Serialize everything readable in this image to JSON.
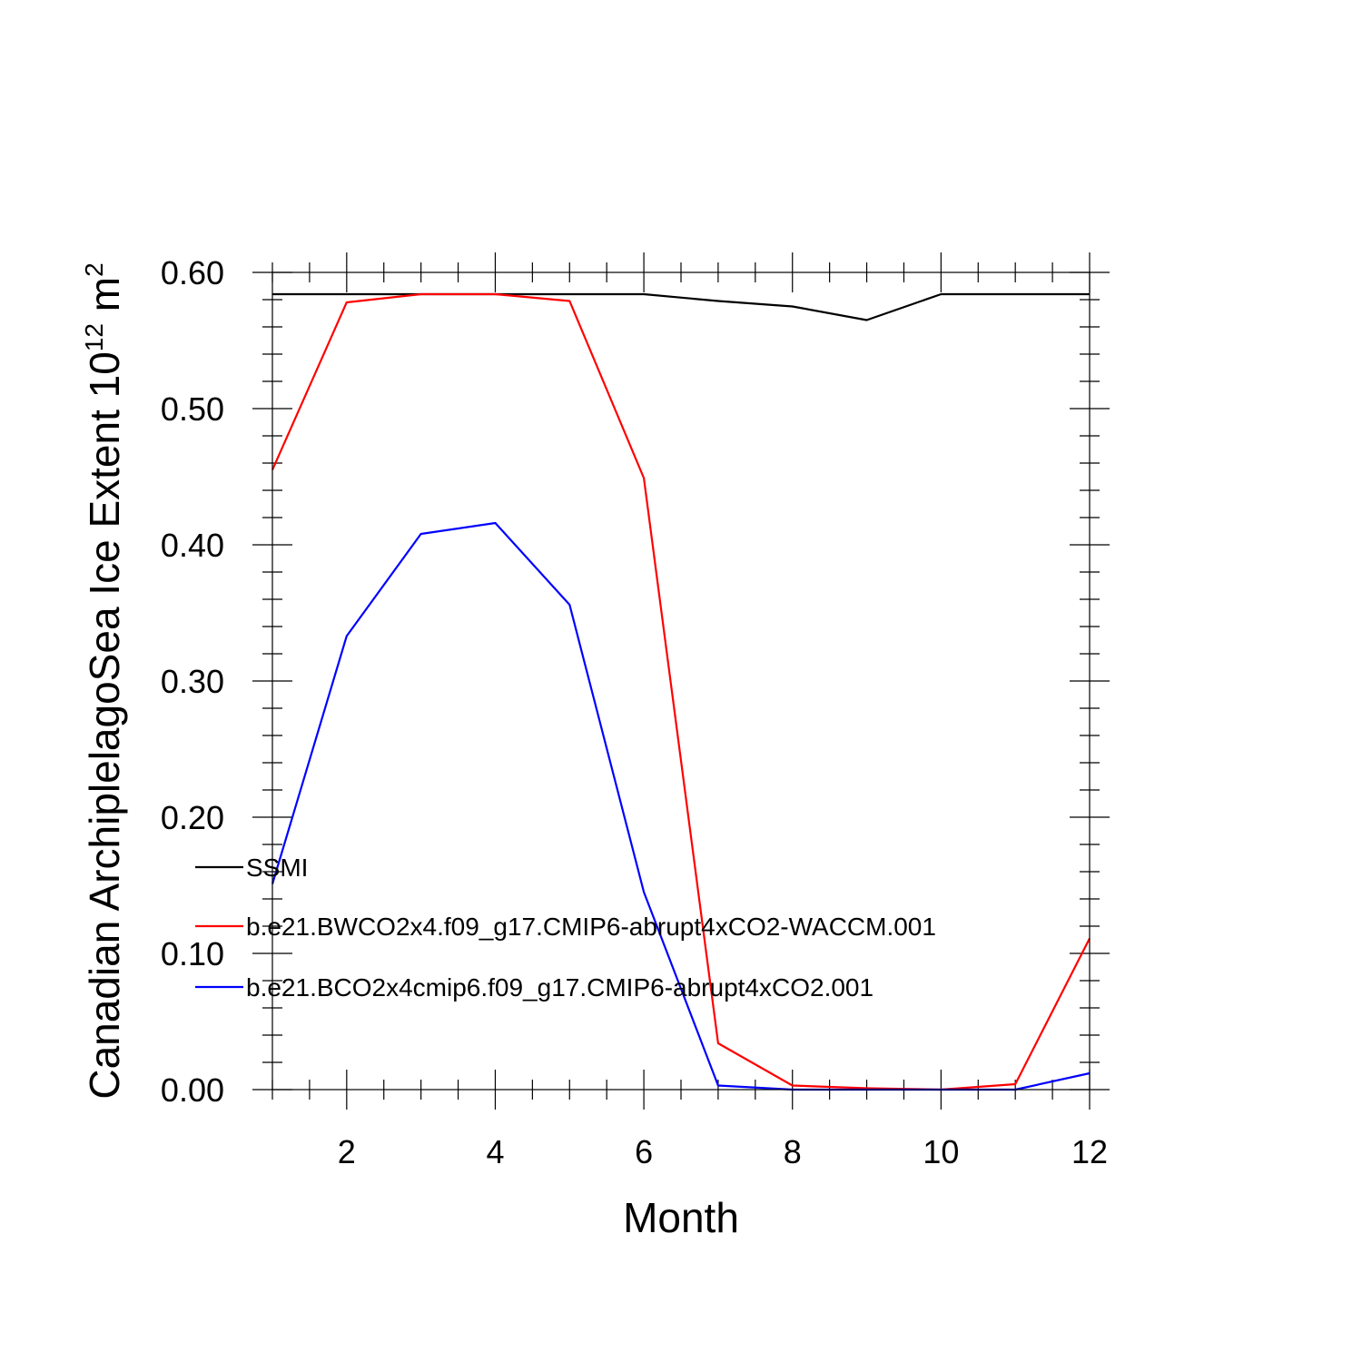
{
  "chart_data": {
    "type": "line",
    "title": "",
    "xlabel": "Month",
    "ylabel": {
      "main": "Canadian ArchiplelagoSea Ice Extent 10",
      "exponent": "12",
      "unit": " m",
      "unit_exponent": "2"
    },
    "xlim": [
      1,
      12
    ],
    "ylim": [
      0,
      0.6
    ],
    "x": [
      1,
      2,
      3,
      4,
      5,
      6,
      7,
      8,
      9,
      10,
      11,
      12
    ],
    "xticks": [
      "2",
      "4",
      "6",
      "8",
      "10",
      "12"
    ],
    "yticks": [
      "0.00",
      "0.10",
      "0.20",
      "0.30",
      "0.40",
      "0.50",
      "0.60"
    ],
    "grid": false,
    "legend_position": "left-middle",
    "series": [
      {
        "name": "SSMI",
        "color": "#000000",
        "values": [
          0.584,
          0.584,
          0.584,
          0.584,
          0.584,
          0.584,
          0.579,
          0.575,
          0.565,
          0.584,
          0.584,
          0.584
        ]
      },
      {
        "name": "b.e21.BWCO2x4.f09_g17.CMIP6-abrupt4xCO2-WACCM.001",
        "color": "#ff0000",
        "values": [
          0.455,
          0.578,
          0.584,
          0.584,
          0.579,
          0.449,
          0.034,
          0.003,
          0.001,
          0.0,
          0.004,
          0.111
        ]
      },
      {
        "name": "b.e21.BCO2x4cmip6.f09_g17.CMIP6-abrupt4xCO2.001",
        "color": "#0000ff",
        "values": [
          0.151,
          0.333,
          0.408,
          0.416,
          0.356,
          0.145,
          0.003,
          0.0,
          0.0,
          0.0,
          0.0,
          0.012
        ]
      }
    ]
  }
}
